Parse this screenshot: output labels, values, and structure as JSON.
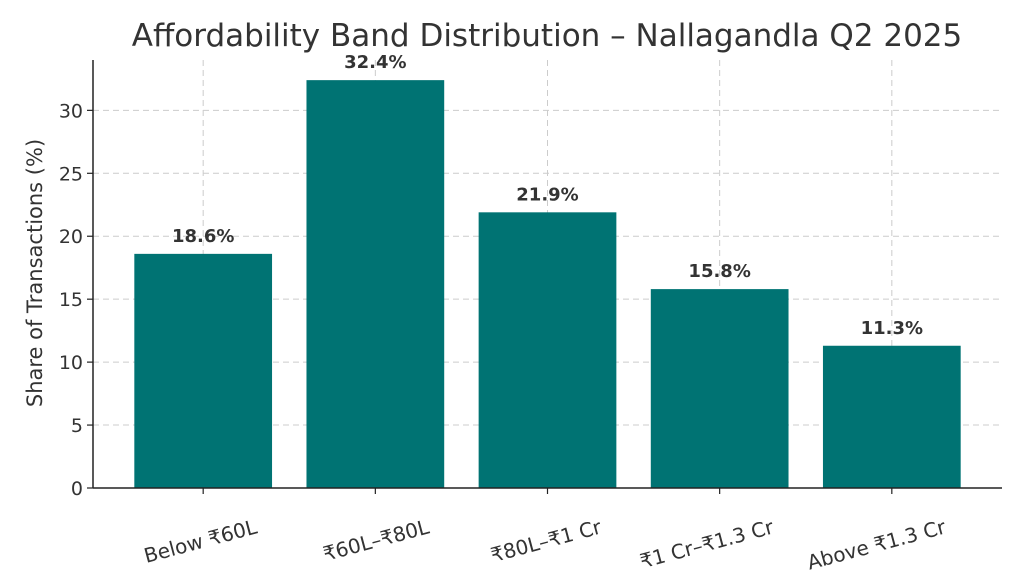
{
  "chart_data": {
    "type": "bar",
    "title": "Affordability Band Distribution – Nallagandla Q2 2025",
    "xlabel": "",
    "ylabel": "Share of Transactions (%)",
    "categories": [
      "Below ₹60L",
      "₹60L–₹80L",
      "₹80L–₹1 Cr",
      "₹1 Cr–₹1.3 Cr",
      "Above ₹1.3 Cr"
    ],
    "values": [
      18.6,
      32.4,
      21.9,
      15.8,
      11.3
    ],
    "data_labels": [
      "18.6%",
      "32.4%",
      "21.9%",
      "15.8%",
      "11.3%"
    ],
    "ylim": [
      0,
      34
    ],
    "yticks": [
      0,
      5,
      10,
      15,
      20,
      25,
      30
    ],
    "grid": true,
    "bar_color": "#007373"
  }
}
